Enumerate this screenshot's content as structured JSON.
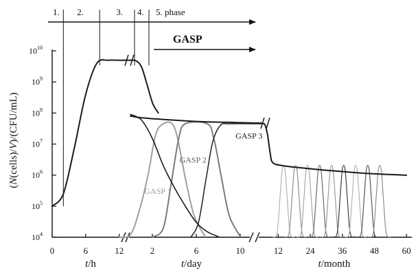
{
  "chart_data": {
    "type": "line",
    "ylabel": "(N(cells)/V)/(CFU/mL)",
    "ylabel_parts": [
      "(",
      "N",
      "(cells)/",
      "V",
      ")/(CFU/mL)"
    ],
    "y_scale": "log",
    "ylim": [
      10000,
      10000000000
    ],
    "y_ticks": [
      {
        "base": "10",
        "exp": "4",
        "value": 10000
      },
      {
        "base": "10",
        "exp": "5",
        "value": 100000
      },
      {
        "base": "10",
        "exp": "6",
        "value": 1000000
      },
      {
        "base": "10",
        "exp": "7",
        "value": 10000000
      },
      {
        "base": "10",
        "exp": "8",
        "value": 100000000
      },
      {
        "base": "10",
        "exp": "9",
        "value": 1000000000
      },
      {
        "base": "10",
        "exp": "10",
        "value": 10000000000
      }
    ],
    "x_segments": [
      {
        "label": "t/h",
        "label_italic": "t",
        "label_unit": "/h",
        "range": [
          0,
          14
        ],
        "ticks": [
          "0",
          "6",
          "12"
        ],
        "tick_values": [
          0,
          6,
          12
        ]
      },
      {
        "label": "t/day",
        "label_italic": "t",
        "label_unit": "/day",
        "range": [
          0,
          12
        ],
        "ticks": [
          "2",
          "6",
          "10"
        ],
        "tick_values": [
          2,
          6,
          10
        ]
      },
      {
        "label": "t/month",
        "label_italic": "t",
        "label_unit": "/month",
        "range": [
          6,
          62
        ],
        "ticks": [
          "12",
          "24",
          "36",
          "48",
          "60"
        ],
        "tick_values": [
          12,
          24,
          36,
          48,
          60
        ]
      }
    ],
    "phases": {
      "labels": [
        "1.",
        "2.",
        "3.",
        "4.",
        "5. phase"
      ],
      "boundaries_h": [
        2,
        8.5,
        15,
        18.5
      ]
    },
    "gasp_arrow_label": "GASP",
    "main_series": {
      "name": "",
      "color": "#1a1a1a",
      "hours": [
        [
          0,
          100000
        ],
        [
          2,
          250000
        ],
        [
          4,
          8000000
        ],
        [
          6,
          400000000
        ],
        [
          8,
          4000000000
        ],
        [
          10,
          5000000000
        ],
        [
          12,
          5000000000
        ],
        [
          14,
          5000000000
        ],
        [
          15,
          4800000000
        ],
        [
          16,
          3000000000
        ],
        [
          17,
          800000000
        ],
        [
          18,
          200000000
        ],
        [
          19,
          100000000
        ]
      ],
      "days": [
        [
          0,
          80000000
        ],
        [
          1,
          70000000
        ],
        [
          3,
          62000000
        ],
        [
          5,
          56000000
        ],
        [
          7,
          52000000
        ],
        [
          9,
          50000000
        ],
        [
          11,
          48000000
        ],
        [
          12,
          47000000
        ]
      ],
      "months": [
        [
          6,
          46000000
        ],
        [
          7,
          42000000
        ],
        [
          8,
          20000000
        ],
        [
          9,
          5000000
        ],
        [
          10,
          2500000
        ],
        [
          14,
          2000000
        ],
        [
          24,
          1600000
        ],
        [
          36,
          1300000
        ],
        [
          48,
          1100000
        ],
        [
          60,
          1000000
        ]
      ]
    },
    "decline_curve_days": {
      "color": "#1a1a1a",
      "points": [
        [
          0,
          90000000
        ],
        [
          1,
          60000000
        ],
        [
          2,
          15000000
        ],
        [
          3,
          2000000
        ],
        [
          4,
          400000
        ],
        [
          5,
          100000
        ],
        [
          6,
          30000
        ],
        [
          7,
          15000
        ],
        [
          8,
          10500
        ]
      ]
    },
    "gasp_curves_days": [
      {
        "name": "GASP 1",
        "label_color": "#9a9a9a",
        "color": "#9e9e9e",
        "points": [
          [
            -1,
            10000
          ],
          [
            0,
            12000
          ],
          [
            0.8,
            70000
          ],
          [
            1.6,
            1000000
          ],
          [
            2.3,
            20000000
          ],
          [
            3,
            45000000
          ],
          [
            3.8,
            45000000
          ],
          [
            4.3,
            15000000
          ],
          [
            5,
            800000
          ],
          [
            5.8,
            50000
          ],
          [
            6.8,
            10500
          ]
        ]
      },
      {
        "name": "GASP 2",
        "label_color": "#606060",
        "color": "#7a7a7a",
        "points": [
          [
            2,
            10000
          ],
          [
            3,
            20000
          ],
          [
            3.7,
            500000
          ],
          [
            4.4,
            15000000
          ],
          [
            5,
            45000000
          ],
          [
            7,
            45000000
          ],
          [
            7.6,
            15000000
          ],
          [
            8.3,
            800000
          ],
          [
            9,
            50000
          ],
          [
            10,
            10500
          ]
        ]
      },
      {
        "name": "GASP 3",
        "label_color": "#1a1a1a",
        "color": "#2a2a2a",
        "points": [
          [
            5.5,
            10000
          ],
          [
            6.2,
            30000
          ],
          [
            6.9,
            800000
          ],
          [
            7.5,
            12000000
          ],
          [
            8.2,
            40000000
          ],
          [
            9,
            45000000
          ],
          [
            12,
            45000000
          ]
        ]
      }
    ],
    "month_oscillations": {
      "colors": [
        "#b3b3b3",
        "#8d8d8d",
        "#a6a6a6",
        "#6a6a6a",
        "#9a9a9a",
        "#3a3a3a",
        "#b3b3b3",
        "#555555",
        "#8d8d8d"
      ],
      "peak": 1600000,
      "centers": [
        14,
        18.5,
        23,
        27.5,
        32,
        36.5,
        41,
        45.5,
        50
      ]
    }
  }
}
